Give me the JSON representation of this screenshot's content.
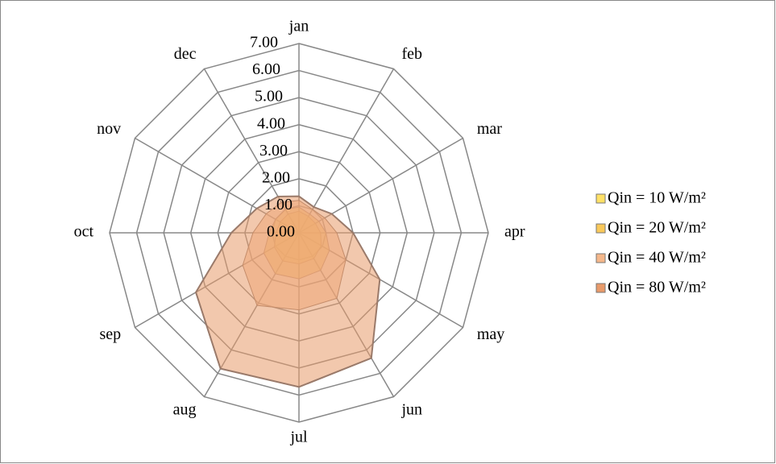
{
  "chart_data": {
    "type": "radar",
    "categories": [
      "jan",
      "feb",
      "mar",
      "apr",
      "may",
      "jun",
      "jul",
      "aug",
      "sep",
      "oct",
      "nov",
      "dec"
    ],
    "ylim": [
      0,
      7
    ],
    "yticks": [
      {
        "value": 0,
        "label": "0.00"
      },
      {
        "value": 1,
        "label": "1.00"
      },
      {
        "value": 2,
        "label": "2.00"
      },
      {
        "value": 3,
        "label": "3.00"
      },
      {
        "value": 4,
        "label": "4.00"
      },
      {
        "value": 5,
        "label": "5.00"
      },
      {
        "value": 6,
        "label": "6.00"
      },
      {
        "value": 7,
        "label": "7.00"
      }
    ],
    "grid": true,
    "legend": "right",
    "series": [
      {
        "name": "Qin = 10 W/m²",
        "color": "#ffe066",
        "values": [
          0.8,
          0.7,
          0.7,
          0.8,
          0.95,
          1.1,
          1.15,
          1.2,
          1.05,
          0.85,
          0.8,
          0.8
        ]
      },
      {
        "name": "Qin = 20 W/m²",
        "color": "#f9c85a",
        "values": [
          0.95,
          0.8,
          0.85,
          1.0,
          1.3,
          1.6,
          1.7,
          1.75,
          1.5,
          1.1,
          1.0,
          1.0
        ]
      },
      {
        "name": "Qin = 40 W/m²",
        "color": "#f5b78a",
        "values": [
          1.2,
          1.0,
          1.1,
          1.4,
          2.0,
          2.8,
          2.85,
          3.1,
          2.4,
          1.7,
          1.4,
          1.3
        ]
      },
      {
        "name": "Qin = 80 W/m²",
        "color": "#e89a6a",
        "values": [
          1.35,
          1.1,
          1.4,
          2.0,
          3.45,
          5.35,
          5.7,
          5.8,
          4.4,
          2.5,
          1.8,
          1.55
        ]
      }
    ]
  }
}
